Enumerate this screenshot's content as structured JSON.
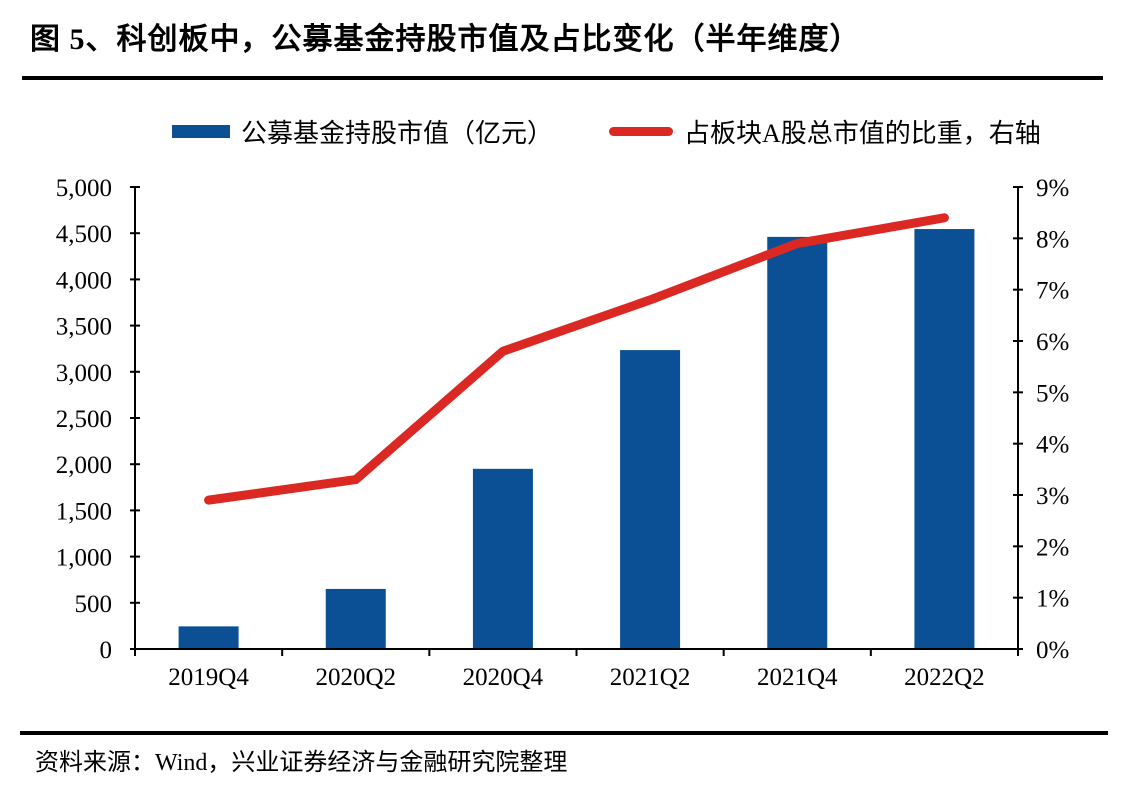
{
  "figure": {
    "title": "图 5、科创板中，公募基金持股市值及占比变化（半年维度）",
    "source": "资料来源：Wind，兴业证券经济与金融研究院整理"
  },
  "legend": {
    "bar_label": "公募基金持股市值（亿元）",
    "line_label": "占板块A股总市值的比重，右轴"
  },
  "colors": {
    "bar": "#0B5095",
    "line": "#DC2823",
    "axis": "#000000",
    "text": "#000000"
  },
  "chart_data": {
    "type": "combo-bar-line",
    "title": "科创板中，公募基金持股市值及占比变化（半年维度）",
    "categories": [
      "2019Q4",
      "2020Q2",
      "2020Q4",
      "2021Q2",
      "2021Q4",
      "2022Q2"
    ],
    "series": [
      {
        "name": "公募基金持股市值（亿元）",
        "type": "bar",
        "axis": "left",
        "color": "#0B5095",
        "values": [
          245,
          650,
          1950,
          3235,
          4460,
          4545
        ]
      },
      {
        "name": "占板块A股总市值的比重，右轴",
        "type": "line",
        "axis": "right",
        "color": "#DC2823",
        "unit": "%",
        "values": [
          2.9,
          3.3,
          5.8,
          6.8,
          7.9,
          8.4
        ]
      }
    ],
    "left_axis": {
      "min": 0,
      "max": 5000,
      "step": 500,
      "tick_labels": [
        "5,000",
        "4,500",
        "4,000",
        "3,500",
        "3,000",
        "2,500",
        "2,000",
        "1,500",
        "1,000",
        "500",
        "0"
      ]
    },
    "right_axis": {
      "min": 0,
      "max": 9,
      "step": 1,
      "unit": "%",
      "tick_labels": [
        "9%",
        "8%",
        "7%",
        "6%",
        "5%",
        "4%",
        "3%",
        "2%",
        "1%",
        "0%"
      ]
    },
    "grid": false,
    "legend_position": "top-center"
  }
}
